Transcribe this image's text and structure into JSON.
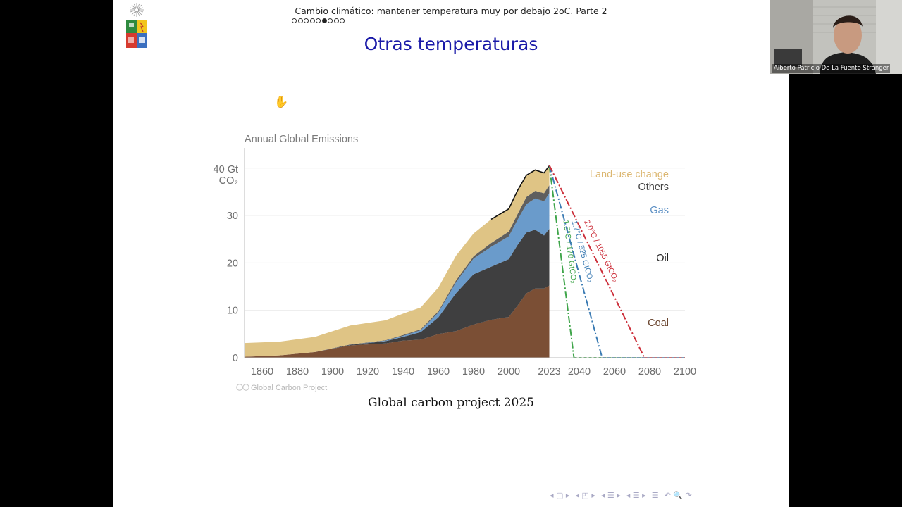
{
  "slide": {
    "header_title": "Cambio climático: mantener temperatura muy por debajo 2oC. Parte 2",
    "nav_dots_total": 8,
    "nav_dots_active_index": 5,
    "frame_title": "Otras temperaturas",
    "caption": "Global carbon project 2025"
  },
  "video": {
    "participant_name": "Alberto Patricio De La Fuente Stranger"
  },
  "chart_data": {
    "type": "area",
    "title": "Annual Global Emissions",
    "ylabel_top": "40 Gt",
    "ylabel_unit": "CO₂",
    "credit": "Global Carbon Project",
    "x_ticks": [
      "1860",
      "1880",
      "1900",
      "1920",
      "1940",
      "1960",
      "1980",
      "2000",
      "2023",
      "2040",
      "2060",
      "2080",
      "2100"
    ],
    "y_ticks": [
      "0",
      "10",
      "20",
      "30"
    ],
    "xlim": [
      1850,
      2100
    ],
    "ylim": [
      0,
      41
    ],
    "grid": true,
    "x": [
      1850,
      1870,
      1890,
      1910,
      1930,
      1940,
      1950,
      1960,
      1970,
      1980,
      1990,
      2000,
      2005,
      2010,
      2015,
      2020,
      2023
    ],
    "series": [
      {
        "name": "Coal",
        "color": "#7b4f35",
        "values": [
          0.2,
          0.5,
          1.2,
          2.6,
          3.0,
          3.6,
          3.8,
          5.0,
          5.6,
          7.0,
          8.0,
          8.6,
          11.0,
          13.6,
          14.6,
          14.6,
          15.2
        ]
      },
      {
        "name": "Oil",
        "color": "#3f3f40",
        "values": [
          0.0,
          0.0,
          0.0,
          0.1,
          0.5,
          0.8,
          1.6,
          3.5,
          8.0,
          10.6,
          11.2,
          12.2,
          12.8,
          12.8,
          12.4,
          11.2,
          12.0
        ]
      },
      {
        "name": "Gas",
        "color": "#6a9bcb",
        "values": [
          0.0,
          0.0,
          0.0,
          0.0,
          0.1,
          0.2,
          0.4,
          1.0,
          2.3,
          3.3,
          4.2,
          4.8,
          5.3,
          6.0,
          6.6,
          7.2,
          7.5
        ]
      },
      {
        "name": "Others",
        "color": "#5f5f5f",
        "values": [
          0.0,
          0.0,
          0.0,
          0.1,
          0.1,
          0.2,
          0.2,
          0.3,
          0.4,
          0.5,
          0.8,
          1.0,
          1.2,
          1.5,
          1.6,
          1.7,
          1.7
        ]
      },
      {
        "name": "Land-use change",
        "color": "#dfc485",
        "values": [
          2.9,
          2.9,
          3.2,
          4.0,
          4.2,
          4.5,
          4.6,
          5.0,
          5.2,
          4.8,
          5.0,
          4.8,
          5.0,
          4.6,
          4.4,
          4.3,
          4.1
        ]
      }
    ],
    "scenarios": [
      {
        "label": "1.5°C / 170 GtCO₂",
        "color": "#3fa54a",
        "start": [
          2023,
          40.6
        ],
        "end": [
          2037,
          0
        ]
      },
      {
        "label": "1.7°C / 525 GtCO₂",
        "color": "#3b7bb3",
        "start": [
          2023,
          40.6
        ],
        "end": [
          2053,
          0
        ]
      },
      {
        "label": "2.0°C / 1055 GtCO₂",
        "color": "#cc2f3a",
        "start": [
          2023,
          40.6
        ],
        "end": [
          2077,
          0
        ]
      }
    ],
    "series_labels": [
      {
        "text": "Land-use change",
        "color": "#dcb771"
      },
      {
        "text": "Others",
        "color": "#444444"
      },
      {
        "text": "Gas",
        "color": "#5b8fc4"
      },
      {
        "text": "Oil",
        "color": "#222222"
      },
      {
        "text": "Coal",
        "color": "#6b4630"
      }
    ]
  }
}
